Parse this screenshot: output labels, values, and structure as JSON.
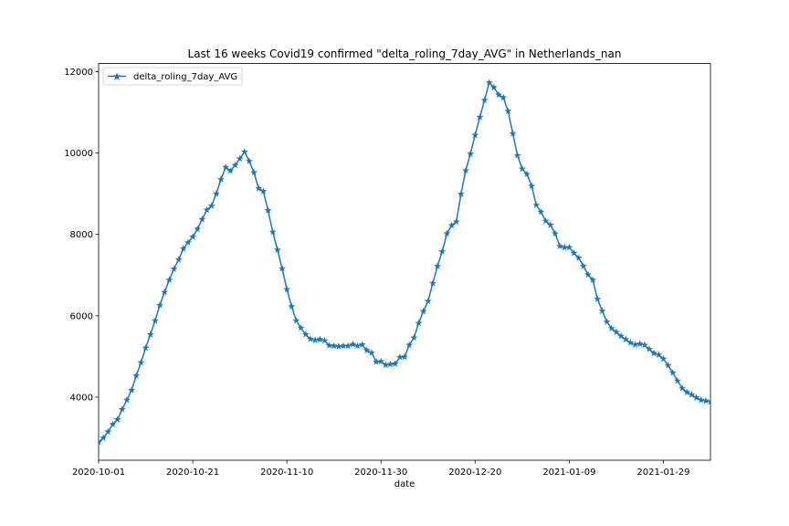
{
  "chart_data": {
    "type": "line",
    "title": "Last 16 weeks Covid19 confirmed \"delta_roling_7day_AVG\" in Netherlands_nan",
    "xlabel": "date",
    "ylabel": "",
    "x_start": "2020-10-01",
    "x_end": "2021-02-08",
    "xlim": [
      "2020-10-01",
      "2021-02-08"
    ],
    "ylim": [
      2450,
      12200
    ],
    "x_tick_labels": [
      "2020-10-01",
      "2020-10-21",
      "2020-11-10",
      "2020-11-30",
      "2020-12-20",
      "2021-01-09",
      "2021-01-29"
    ],
    "y_tick_labels": [
      "4000",
      "6000",
      "8000",
      "10000",
      "12000"
    ],
    "y_ticks": [
      4000,
      6000,
      8000,
      10000,
      12000
    ],
    "legend_position": "upper-left",
    "marker": "star",
    "line_color": "#1f77b4",
    "series": [
      {
        "name": "delta_roling_7day_AVG",
        "values": [
          2900,
          3000,
          3150,
          3330,
          3450,
          3700,
          3930,
          4170,
          4530,
          4850,
          5210,
          5540,
          5880,
          6260,
          6580,
          6880,
          7150,
          7380,
          7650,
          7800,
          7940,
          8130,
          8370,
          8600,
          8700,
          9000,
          9350,
          9650,
          9560,
          9700,
          9860,
          10030,
          9800,
          9520,
          9130,
          9060,
          8590,
          8060,
          7620,
          7160,
          6650,
          6230,
          5880,
          5700,
          5540,
          5430,
          5400,
          5420,
          5390,
          5270,
          5260,
          5250,
          5260,
          5260,
          5300,
          5260,
          5290,
          5150,
          5090,
          4870,
          4880,
          4790,
          4810,
          4820,
          4980,
          4990,
          5280,
          5460,
          5820,
          6110,
          6360,
          6800,
          7220,
          7580,
          8020,
          8220,
          8310,
          8990,
          9570,
          9980,
          10440,
          10880,
          11300,
          11730,
          11610,
          11430,
          11360,
          11030,
          10480,
          9940,
          9610,
          9480,
          9190,
          8720,
          8550,
          8330,
          8230,
          8020,
          7710,
          7680,
          7680,
          7540,
          7420,
          7220,
          7010,
          6880,
          6410,
          6120,
          5850,
          5690,
          5600,
          5500,
          5420,
          5340,
          5290,
          5310,
          5280,
          5180,
          5080,
          5040,
          4940,
          4780,
          4600,
          4400,
          4220,
          4120,
          4060,
          3990,
          3930,
          3910,
          3890,
          3890
        ]
      }
    ]
  }
}
